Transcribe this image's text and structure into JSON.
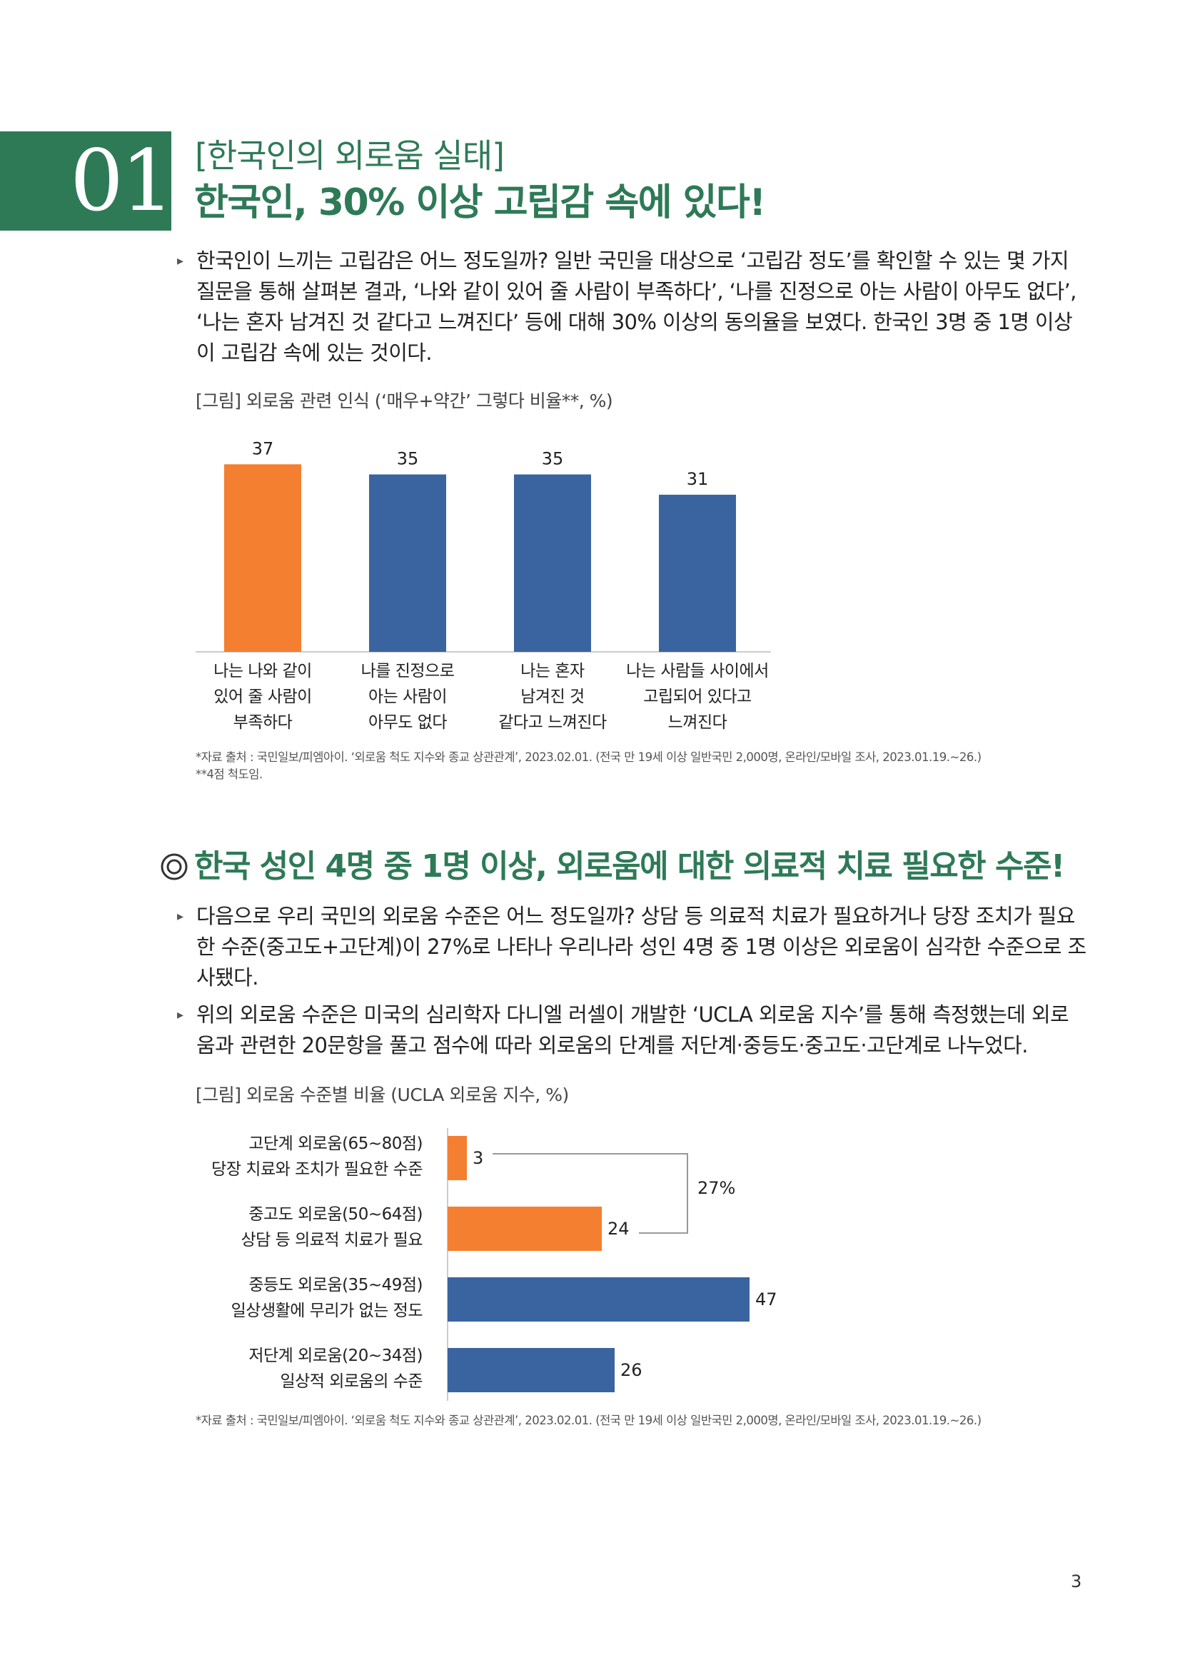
{
  "section": {
    "number": "01",
    "subtitle": "[한국인의 외로움 실태]",
    "title": "한국인, 30% 이상 고립감 속에 있다!"
  },
  "intro": {
    "bullet_icon": "triangle-right-icon",
    "lines": [
      "한국인이 느끼는 고립감은 어느 정도일까? 일반 국민을 대상으로 ‘고립감 정도’를 확인할 수 있는 몇 가지",
      "질문을 통해 살펴본 결과, ‘나와 같이 있어 줄 사람이 부족하다’, ‘나를 진정으로 아는 사람이 아무도 없다’,",
      "‘나는 혼자 남겨진 것 같다고 느껴진다’ 등에 대해 30% 이상의 동의율을 보였다. 한국인 3명 중 1명 이상",
      "이 고립감 속에 있는 것이다."
    ]
  },
  "figure1": {
    "title": "[그림] 외로움 관련 인식 (‘매우+약간’ 그렇다 비율**, %)",
    "source": "*자료 출처 : 국민일보/피엠아이. ‘외로움 척도 지수와 종교 상관관계’, 2023.02.01. (전국 만 19세 이상 일반국민 2,000명, 온라인/모바일 조사, 2023.01.19.~26.)",
    "note": "**4점 척도임."
  },
  "section2": {
    "icon": "double-circle-icon",
    "title": "한국 성인 4명 중 1명 이상, 외로움에 대한 의료적 치료 필요한 수준!",
    "bullet1_lines": [
      "다음으로 우리 국민의 외로움 수준은 어느 정도일까? 상담 등 의료적 치료가 필요하거나 당장 조치가 필요",
      "한 수준(중고도+고단계)이 27%로 나타나 우리나라 성인 4명 중 1명 이상은 외로움이 심각한 수준으로 조",
      "사됐다."
    ],
    "bullet2_lines": [
      "위의 외로움 수준은 미국의 심리학자 다니엘 러셀이 개발한 ‘UCLA 외로움 지수’를 통해 측정했는데 외로",
      "움과 관련한 20문항을 풀고 점수에 따라 외로움의 단계를 저단계·중등도·중고도·고단계로 나누었다."
    ]
  },
  "figure2": {
    "title": "[그림] 외로움 수준별 비율 (UCLA 외로움 지수, %)",
    "source": "*자료 출처 : 국민일보/피엠아이. ‘외로움 척도 지수와 종교 상관관계’, 2023.02.01. (전국 만 19세 이상 일반국민 2,000명, 온라인/모바일 조사, 2023.01.19.~26.)",
    "bracket_label": "27%"
  },
  "chart_data": [
    {
      "type": "bar",
      "orientation": "vertical",
      "title": "[그림] 외로움 관련 인식 (‘매우+약간’ 그렇다 비율**, %)",
      "categories": [
        [
          "나는 나와 같이",
          "있어 줄 사람이",
          "부족하다"
        ],
        [
          "나를 진정으로",
          "아는 사람이",
          "아무도 없다"
        ],
        [
          "나는 혼자",
          "남겨진 것",
          "같다고 느껴진다"
        ],
        [
          "나는 사람들 사이에서",
          "고립되어 있다고",
          "느껴진다"
        ]
      ],
      "values": [
        37,
        35,
        35,
        31
      ],
      "colors": [
        "#f47f30",
        "#3a64a0",
        "#3a64a0",
        "#3a64a0"
      ],
      "ylim": [
        0,
        40
      ],
      "grid": false,
      "xlabel": "",
      "ylabel": ""
    },
    {
      "type": "bar",
      "orientation": "horizontal",
      "title": "[그림] 외로움 수준별 비율 (UCLA 외로움 지수, %)",
      "categories": [
        [
          "고단계 외로움(65~80점)",
          "당장 치료와 조치가 필요한 수준"
        ],
        [
          "중고도 외로움(50~64점)",
          "상담 등 의료적 치료가 필요"
        ],
        [
          "중등도 외로움(35~49점)",
          "일상생활에 무리가 없는 정도"
        ],
        [
          "저단계 외로움(20~34점)",
          "일상적 외로움의 수준"
        ]
      ],
      "values": [
        3,
        24,
        47,
        26
      ],
      "colors": [
        "#f47f30",
        "#f47f30",
        "#3a64a0",
        "#3a64a0"
      ],
      "xlim": [
        0,
        50
      ],
      "annotation": "27%",
      "grid": false
    }
  ],
  "page": {
    "number": "3"
  },
  "colors": {
    "accent_green": "#2e7a57",
    "orange": "#f47f30",
    "blue": "#3a64a0"
  }
}
